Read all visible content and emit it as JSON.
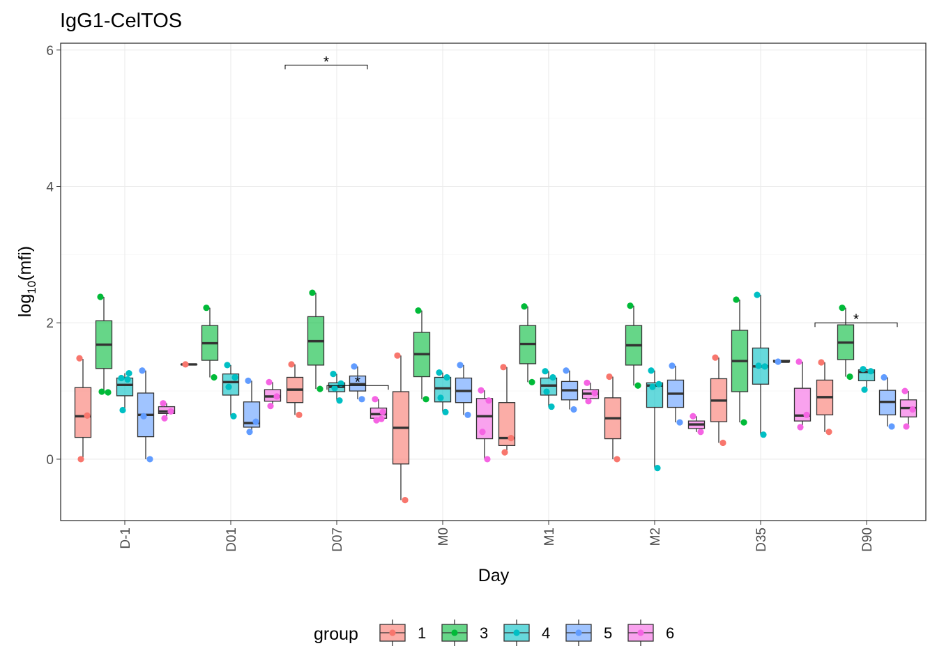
{
  "chart_data": {
    "type": "box",
    "title": "IgG1-CelTOS",
    "xlabel": "Day",
    "ylabel_main": "log",
    "ylabel_sub": "10",
    "ylabel_rest": "(mfi)",
    "ylim": [
      -0.9,
      6.1
    ],
    "yticks": [
      0,
      2,
      4,
      6
    ],
    "ytick_labels": [
      "0",
      "2",
      "4",
      "6"
    ],
    "grid": true,
    "legend": {
      "title": "group",
      "position": "bottom"
    },
    "categories": [
      "D-1",
      "D01",
      "D07",
      "M0",
      "M1",
      "M2",
      "D35",
      "D90"
    ],
    "groups": [
      {
        "name": "1",
        "color": "#F8766D"
      },
      {
        "name": "3",
        "color": "#00BA38"
      },
      {
        "name": "4",
        "color": "#00BFC4"
      },
      {
        "name": "5",
        "color": "#619CFF"
      },
      {
        "name": "6",
        "color": "#F564E3"
      }
    ],
    "boxes": [
      [
        {
          "min": 0.0,
          "q1": 0.32,
          "median": 0.63,
          "q3": 1.05,
          "max": 1.47,
          "points": [
            1.48,
            0.64,
            0.0
          ]
        },
        {
          "min": 0.98,
          "q1": 1.33,
          "median": 1.68,
          "q3": 2.03,
          "max": 2.38,
          "points": [
            2.38,
            0.98,
            0.99
          ]
        },
        {
          "min": 0.72,
          "q1": 0.93,
          "median": 1.09,
          "q3": 1.19,
          "max": 1.26,
          "points": [
            1.19,
            1.26,
            0.72,
            1.17
          ]
        },
        {
          "min": 0.0,
          "q1": 0.33,
          "median": 0.65,
          "q3": 0.97,
          "max": 1.3,
          "points": [
            1.3,
            0.0,
            0.63
          ]
        },
        {
          "min": 0.6,
          "q1": 0.67,
          "median": 0.7,
          "q3": 0.77,
          "max": 0.82,
          "points": [
            0.82,
            0.7,
            0.6
          ]
        }
      ],
      [
        {
          "min": 1.39,
          "q1": 1.39,
          "median": 1.39,
          "q3": 1.39,
          "max": 1.39,
          "points": [
            1.39
          ]
        },
        {
          "min": 1.2,
          "q1": 1.45,
          "median": 1.7,
          "q3": 1.96,
          "max": 2.22,
          "points": [
            2.22,
            1.2
          ]
        },
        {
          "min": 0.63,
          "q1": 0.94,
          "median": 1.13,
          "q3": 1.25,
          "max": 1.38,
          "points": [
            1.38,
            1.2,
            1.06,
            0.63
          ]
        },
        {
          "min": 0.4,
          "q1": 0.47,
          "median": 0.53,
          "q3": 0.84,
          "max": 1.15,
          "points": [
            1.15,
            0.55,
            0.4
          ]
        },
        {
          "min": 0.78,
          "q1": 0.85,
          "median": 0.92,
          "q3": 1.02,
          "max": 1.13,
          "points": [
            1.13,
            0.92,
            0.78
          ]
        }
      ],
      [
        {
          "min": 0.65,
          "q1": 0.83,
          "median": 1.02,
          "q3": 1.2,
          "max": 1.39,
          "points": [
            1.39,
            0.65
          ]
        },
        {
          "min": 1.03,
          "q1": 1.38,
          "median": 1.73,
          "q3": 2.09,
          "max": 2.44,
          "points": [
            2.44,
            1.03
          ]
        },
        {
          "min": 0.86,
          "q1": 0.99,
          "median": 1.06,
          "q3": 1.12,
          "max": 1.25,
          "points": [
            1.25,
            1.11,
            1.04,
            0.86
          ]
        },
        {
          "min": 0.88,
          "q1": 1.0,
          "median": 1.1,
          "q3": 1.22,
          "max": 1.36,
          "points": [
            1.36,
            0.88
          ]
        },
        {
          "min": 0.57,
          "q1": 0.6,
          "median": 0.66,
          "q3": 0.75,
          "max": 0.88,
          "points": [
            0.88,
            0.69,
            0.57,
            0.59
          ]
        }
      ],
      [
        {
          "min": -0.6,
          "q1": -0.07,
          "median": 0.46,
          "q3": 0.99,
          "max": 1.52,
          "points": [
            1.52,
            -0.6
          ]
        },
        {
          "min": 0.88,
          "q1": 1.21,
          "median": 1.54,
          "q3": 1.86,
          "max": 2.18,
          "points": [
            2.18,
            0.88
          ]
        },
        {
          "min": 0.69,
          "q1": 0.84,
          "median": 1.04,
          "q3": 1.2,
          "max": 1.27,
          "points": [
            1.27,
            1.2,
            0.9,
            0.69
          ]
        },
        {
          "min": 0.65,
          "q1": 0.83,
          "median": 1.0,
          "q3": 1.19,
          "max": 1.38,
          "points": [
            1.38,
            0.65
          ]
        },
        {
          "min": 0.0,
          "q1": 0.3,
          "median": 0.63,
          "q3": 0.89,
          "max": 1.01,
          "points": [
            1.01,
            0.86,
            0.4,
            0.0
          ]
        }
      ],
      [
        {
          "min": 0.1,
          "q1": 0.2,
          "median": 0.31,
          "q3": 0.83,
          "max": 1.35,
          "points": [
            1.35,
            0.31,
            0.1
          ]
        },
        {
          "min": 1.13,
          "q1": 1.4,
          "median": 1.69,
          "q3": 1.96,
          "max": 2.24,
          "points": [
            2.24,
            1.13
          ]
        },
        {
          "min": 0.77,
          "q1": 0.94,
          "median": 1.08,
          "q3": 1.19,
          "max": 1.29,
          "points": [
            1.29,
            1.2,
            0.99,
            0.77
          ]
        },
        {
          "min": 0.73,
          "q1": 0.87,
          "median": 1.01,
          "q3": 1.14,
          "max": 1.3,
          "points": [
            1.3,
            0.73
          ]
        },
        {
          "min": 0.85,
          "q1": 0.89,
          "median": 0.96,
          "q3": 1.02,
          "max": 1.12,
          "points": [
            1.12,
            0.97,
            0.85
          ]
        }
      ],
      [
        {
          "min": 0.0,
          "q1": 0.3,
          "median": 0.6,
          "q3": 0.9,
          "max": 1.21,
          "points": [
            1.21,
            0.0
          ]
        },
        {
          "min": 1.08,
          "q1": 1.38,
          "median": 1.67,
          "q3": 1.96,
          "max": 2.25,
          "points": [
            2.25,
            1.08
          ]
        },
        {
          "min": -0.13,
          "q1": 0.76,
          "median": 1.08,
          "q3": 1.12,
          "max": 1.3,
          "points": [
            1.3,
            1.1,
            1.06,
            -0.13
          ]
        },
        {
          "min": 0.54,
          "q1": 0.76,
          "median": 0.96,
          "q3": 1.16,
          "max": 1.37,
          "points": [
            1.37,
            0.54
          ]
        },
        {
          "min": 0.4,
          "q1": 0.45,
          "median": 0.51,
          "q3": 0.56,
          "max": 0.63,
          "points": [
            0.63,
            0.4
          ]
        }
      ],
      [
        {
          "min": 0.24,
          "q1": 0.55,
          "median": 0.86,
          "q3": 1.18,
          "max": 1.49,
          "points": [
            1.49,
            0.24
          ]
        },
        {
          "min": 0.54,
          "q1": 0.99,
          "median": 1.44,
          "q3": 1.89,
          "max": 2.34,
          "points": [
            2.34,
            0.54
          ]
        },
        {
          "min": 0.36,
          "q1": 1.1,
          "median": 1.36,
          "q3": 1.63,
          "max": 2.41,
          "points": [
            2.41,
            1.36,
            1.37,
            0.36
          ]
        },
        {
          "min": 1.43,
          "q1": 1.43,
          "median": 1.43,
          "q3": 1.45,
          "max": 1.45,
          "points": [
            1.43
          ]
        },
        {
          "min": 0.47,
          "q1": 0.56,
          "median": 0.64,
          "q3": 1.04,
          "max": 1.43,
          "points": [
            1.43,
            0.65,
            0.47
          ]
        }
      ],
      [
        {
          "min": 0.4,
          "q1": 0.65,
          "median": 0.91,
          "q3": 1.16,
          "max": 1.42,
          "points": [
            1.42,
            0.4
          ]
        },
        {
          "min": 1.21,
          "q1": 1.46,
          "median": 1.71,
          "q3": 1.97,
          "max": 2.22,
          "points": [
            2.22,
            1.21
          ]
        },
        {
          "min": 1.02,
          "q1": 1.15,
          "median": 1.28,
          "q3": 1.31,
          "max": 1.32,
          "points": [
            1.32,
            1.29,
            1.02
          ]
        },
        {
          "min": 0.48,
          "q1": 0.65,
          "median": 0.84,
          "q3": 1.01,
          "max": 1.2,
          "points": [
            1.2,
            0.48
          ]
        },
        {
          "min": 0.48,
          "q1": 0.62,
          "median": 0.75,
          "q3": 0.87,
          "max": 1.0,
          "points": [
            1.0,
            0.73,
            0.48
          ]
        }
      ]
    ],
    "annotations": [
      {
        "category": "D07",
        "from_group": "1",
        "to_group": "5",
        "y": 5.78,
        "label": "*"
      },
      {
        "category": "D07",
        "from_group": "4",
        "to_group": "6",
        "y": 1.08,
        "label": "*"
      },
      {
        "category": "D90",
        "from_group": "1",
        "to_group": "5",
        "y": 2.0,
        "label": "*"
      }
    ]
  }
}
